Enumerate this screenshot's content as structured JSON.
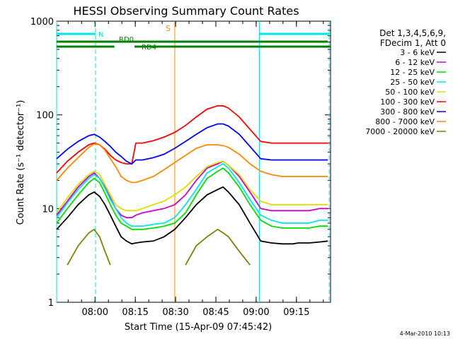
{
  "chart_data": {
    "type": "line",
    "title": "HESSI Observing Summary Count Rates",
    "xlabel": "Start Time (15-Apr-09 07:45:42)",
    "ylabel": "Count Rate (s⁻¹ detector⁻¹)",
    "yscale": "log",
    "ylim": [
      1,
      1000
    ],
    "xlim_minutes_after_start": [
      0,
      102
    ],
    "x_ticks": [
      "08:00",
      "08:15",
      "08:30",
      "08:45",
      "09:00",
      "09:15"
    ],
    "x_tick_minutes_after_start": [
      14.3,
      29.3,
      44.3,
      59.3,
      74.3,
      89.3
    ],
    "y_ticks": [
      "1",
      "10",
      "100",
      "1000"
    ],
    "y_tick_values": [
      1,
      10,
      100,
      1000
    ],
    "legend_header": [
      "Det 1,3,4,5,6,9,",
      "FDecim 1, Att 0"
    ],
    "legend_position": "right",
    "x_minutes": [
      0,
      4,
      8,
      12,
      14,
      16,
      18,
      20,
      22,
      24,
      26,
      28,
      29.5,
      32,
      36,
      40,
      44,
      48,
      52,
      56,
      60,
      62,
      64,
      68,
      72,
      76,
      80,
      84,
      86,
      88,
      90,
      94,
      98,
      101
    ],
    "series": [
      {
        "name": "3 - 6 keV",
        "color": "#000000",
        "values": [
          6,
          8,
          11,
          14,
          15,
          13.5,
          11,
          8.5,
          6.5,
          5,
          4.5,
          4.2,
          4.3,
          4.4,
          4.5,
          5,
          6,
          8,
          11,
          14,
          16,
          17,
          15,
          11,
          7,
          4.5,
          4.3,
          4.2,
          4.2,
          4.2,
          4.3,
          4.3,
          4.4,
          4.5
        ]
      },
      {
        "name": "6 - 12 keV",
        "color": "#cc00cc",
        "values": [
          8.5,
          12,
          17,
          22,
          24,
          21,
          17,
          13,
          10,
          8.5,
          8,
          8,
          8.5,
          9,
          9.5,
          10,
          11,
          14,
          20,
          27,
          30,
          32,
          29,
          22,
          15,
          10,
          9.5,
          9.5,
          9.5,
          9.5,
          9.5,
          9.5,
          10,
          10
        ]
      },
      {
        "name": "12 - 25 keV",
        "color": "#00dd00",
        "values": [
          7,
          10,
          14,
          19,
          21,
          19,
          14.5,
          11,
          8.5,
          7,
          6.5,
          6,
          6,
          6,
          6.2,
          6.5,
          7,
          9,
          14,
          21,
          25,
          27,
          24,
          17,
          11,
          7.5,
          6.5,
          6.2,
          6.2,
          6.2,
          6.2,
          6.2,
          6.5,
          6.5
        ]
      },
      {
        "name": "25 - 50 keV",
        "color": "#00e5e5",
        "values": [
          8,
          11.5,
          16,
          21,
          23,
          21,
          16.5,
          12.5,
          10,
          8,
          7,
          6.5,
          6.5,
          6.5,
          6.8,
          7,
          8,
          11,
          16,
          24,
          28,
          30,
          27,
          19,
          12.5,
          8.5,
          7.5,
          7,
          7,
          7,
          7,
          7,
          7.5,
          7.5
        ]
      },
      {
        "name": "50 - 100 keV",
        "color": "#dddd00",
        "values": [
          9,
          13,
          18,
          23,
          25,
          23,
          18,
          14,
          11,
          10,
          9.5,
          9.5,
          9.5,
          10,
          11,
          12,
          14,
          17,
          22,
          28,
          31,
          32,
          29,
          23,
          16,
          12,
          11,
          11,
          11,
          11,
          11,
          11,
          11,
          11
        ]
      },
      {
        "name": "100 - 300 keV",
        "color": "#ff0000",
        "values": [
          24,
          32,
          40,
          48,
          50,
          48,
          43,
          37,
          33,
          31,
          30,
          30,
          50,
          50,
          53,
          58,
          65,
          77,
          95,
          115,
          125,
          125,
          118,
          95,
          70,
          52,
          50,
          50,
          50,
          50,
          50,
          50,
          50,
          50
        ]
      },
      {
        "name": "300 - 800 keV",
        "color": "#0000ff",
        "values": [
          34,
          43,
          52,
          60,
          62,
          58,
          52,
          46,
          40,
          36,
          32,
          30,
          33,
          33,
          35,
          38,
          44,
          52,
          62,
          73,
          80,
          80,
          76,
          62,
          46,
          34,
          33,
          33,
          33,
          33,
          33,
          33,
          33,
          33
        ]
      },
      {
        "name": "800 - 7000 keV",
        "color": "#ff8800",
        "values": [
          20,
          27,
          35,
          45,
          49,
          48,
          42,
          34,
          28,
          22,
          20,
          19,
          19,
          20,
          22,
          26,
          31,
          37,
          44,
          48,
          48,
          47,
          45,
          38,
          30,
          25,
          23,
          22,
          22,
          22,
          22,
          22,
          22,
          22
        ]
      },
      {
        "name": "7000 - 20000 keV",
        "color": "#808000",
        "values": [
          null,
          2.5,
          4,
          5.5,
          6,
          5,
          3.5,
          2.5,
          null,
          null,
          null,
          null,
          null,
          null,
          null,
          null,
          null,
          2.5,
          4,
          5,
          6,
          5.5,
          5,
          3.5,
          2.5,
          null,
          null,
          null,
          null,
          null,
          null,
          null,
          null,
          null
        ]
      }
    ],
    "flag_bars": [
      {
        "label": "N",
        "color": "#00e5e5",
        "segments": [
          [
            0,
            14.5
          ],
          [
            75.5,
            102
          ]
        ]
      },
      {
        "label": "RD0",
        "color": "#008000",
        "segments": [
          [
            0,
            101
          ]
        ]
      },
      {
        "label": "RD4",
        "color": "#008000",
        "segments": [
          [
            0,
            21.5
          ],
          [
            29,
            102
          ]
        ]
      }
    ],
    "markers": [
      {
        "label": "S",
        "color": "#ff8800",
        "x_minute": 44
      }
    ],
    "cyan_vertical_lines_minute": [
      0,
      14.5,
      75.5,
      101.5
    ],
    "footer_date": "4-Mar-2010 10:13"
  }
}
